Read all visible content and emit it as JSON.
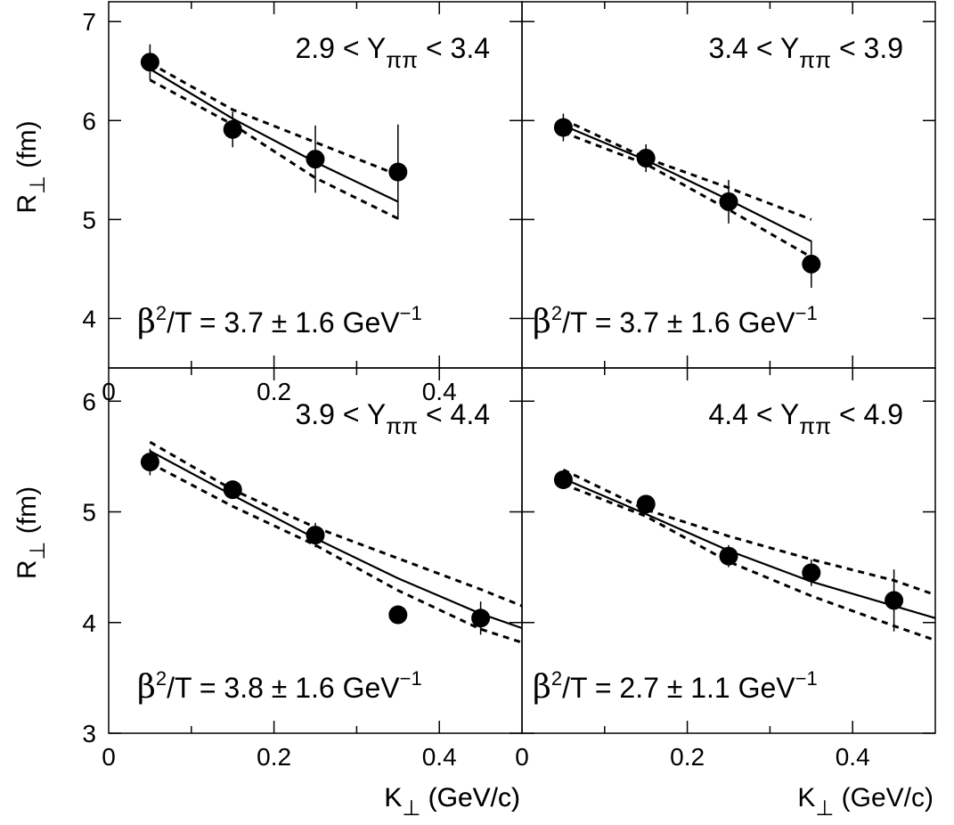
{
  "chart_data": [
    {
      "type": "scatter",
      "panel": "top-left",
      "annotation_main": "2.9 < Y",
      "annotation_sub": "ππ",
      "annotation_tail": " < 3.4",
      "fit_text": "β",
      "fit_sup": "2",
      "fit_mid": "/T = 3.7 ± 1.6 GeV",
      "fit_exp": "−1",
      "ylabel": "R",
      "ylabel_sub": "⊥",
      "ylabel_unit": " (fm)",
      "xlabel": "K",
      "xlabel_sub": "⊥",
      "xlabel_unit": " (GeV/c)",
      "xlim": [
        0,
        0.5
      ],
      "ylim": [
        3.5,
        7.2
      ],
      "yticks": [
        4,
        5,
        6,
        7
      ],
      "xticks": [
        0,
        0.2,
        0.4
      ],
      "points": [
        {
          "x": 0.05,
          "y": 6.59,
          "err": 0.18
        },
        {
          "x": 0.15,
          "y": 5.91,
          "err": 0.18
        },
        {
          "x": 0.25,
          "y": 5.61,
          "err": 0.34
        },
        {
          "x": 0.35,
          "y": 5.48,
          "err": 0.48
        }
      ],
      "fit_x": [
        0.05,
        0.15,
        0.25,
        0.35
      ],
      "fit": [
        6.52,
        6.02,
        5.58,
        5.18
      ],
      "fit_upper": [
        6.58,
        6.11,
        5.78,
        5.45
      ],
      "fit_lower": [
        6.41,
        5.96,
        5.42,
        5.01
      ]
    },
    {
      "type": "scatter",
      "panel": "top-right",
      "annotation_main": "3.4 < Y",
      "annotation_sub": "ππ",
      "annotation_tail": " < 3.9",
      "fit_text": "β",
      "fit_sup": "2",
      "fit_mid": "/T = 3.7 ± 1.6 GeV",
      "fit_exp": "−1",
      "xlim": [
        0,
        0.5
      ],
      "ylim": [
        3.5,
        7.2
      ],
      "points": [
        {
          "x": 0.05,
          "y": 5.93,
          "err": 0.14
        },
        {
          "x": 0.15,
          "y": 5.62,
          "err": 0.14
        },
        {
          "x": 0.25,
          "y": 5.18,
          "err": 0.22
        },
        {
          "x": 0.35,
          "y": 4.55,
          "err": 0.24
        }
      ],
      "fit_x": [
        0.05,
        0.15,
        0.25,
        0.35
      ],
      "fit": [
        5.95,
        5.6,
        5.2,
        4.78
      ],
      "fit_upper": [
        6.01,
        5.62,
        5.32,
        5.0
      ],
      "fit_lower": [
        5.88,
        5.56,
        5.1,
        4.62
      ]
    },
    {
      "type": "scatter",
      "panel": "bottom-left",
      "annotation_main": "3.9 < Y",
      "annotation_sub": "ππ",
      "annotation_tail": " < 4.4",
      "fit_text": "β",
      "fit_sup": "2",
      "fit_mid": "/T = 3.8 ± 1.6 GeV",
      "fit_exp": "−1",
      "ylabel": "R",
      "ylabel_sub": "⊥",
      "ylabel_unit": " (fm)",
      "xlabel": "K",
      "xlabel_sub": "⊥",
      "xlabel_unit": " (GeV/c)",
      "xlim": [
        0,
        0.5
      ],
      "ylim": [
        3,
        6.3
      ],
      "yticks": [
        3,
        4,
        5,
        6
      ],
      "xticks": [
        0,
        0.2,
        0.4
      ],
      "points": [
        {
          "x": 0.05,
          "y": 5.45,
          "err": 0.12
        },
        {
          "x": 0.15,
          "y": 5.2,
          "err": 0.06
        },
        {
          "x": 0.25,
          "y": 4.79,
          "err": 0.11
        },
        {
          "x": 0.35,
          "y": 4.07,
          "err": 0.08
        },
        {
          "x": 0.45,
          "y": 4.04,
          "err": 0.15
        }
      ],
      "fit_x": [
        0.05,
        0.15,
        0.25,
        0.35,
        0.45,
        0.5
      ],
      "fit": [
        5.55,
        5.15,
        4.76,
        4.4,
        4.08,
        3.95
      ],
      "fit_upper": [
        5.63,
        5.2,
        4.86,
        4.58,
        4.3,
        4.15
      ],
      "fit_lower": [
        5.44,
        5.05,
        4.7,
        4.29,
        3.94,
        3.82
      ]
    },
    {
      "type": "scatter",
      "panel": "bottom-right",
      "annotation_main": "4.4 < Y",
      "annotation_sub": "ππ",
      "annotation_tail": " < 4.9",
      "fit_text": "β",
      "fit_sup": "2",
      "fit_mid": "/T = 2.7 ± 1.1 GeV",
      "fit_exp": "−1",
      "xlabel": "K",
      "xlabel_sub": "⊥",
      "xlabel_unit": " (GeV/c)",
      "xlim": [
        0,
        0.5
      ],
      "ylim": [
        3,
        6.3
      ],
      "xticks": [
        0,
        0.2,
        0.4
      ],
      "points": [
        {
          "x": 0.05,
          "y": 5.29,
          "err": 0.06
        },
        {
          "x": 0.15,
          "y": 5.07,
          "err": 0.06
        },
        {
          "x": 0.25,
          "y": 4.6,
          "err": 0.1
        },
        {
          "x": 0.35,
          "y": 4.45,
          "err": 0.12
        },
        {
          "x": 0.45,
          "y": 4.2,
          "err": 0.28
        }
      ],
      "fit_x": [
        0.05,
        0.15,
        0.25,
        0.35,
        0.45,
        0.5
      ],
      "fit": [
        5.3,
        4.98,
        4.65,
        4.37,
        4.15,
        4.04
      ],
      "fit_upper": [
        5.38,
        5.02,
        4.78,
        4.57,
        4.38,
        4.25
      ],
      "fit_lower": [
        5.25,
        4.96,
        4.55,
        4.24,
        3.97,
        3.84
      ]
    }
  ]
}
